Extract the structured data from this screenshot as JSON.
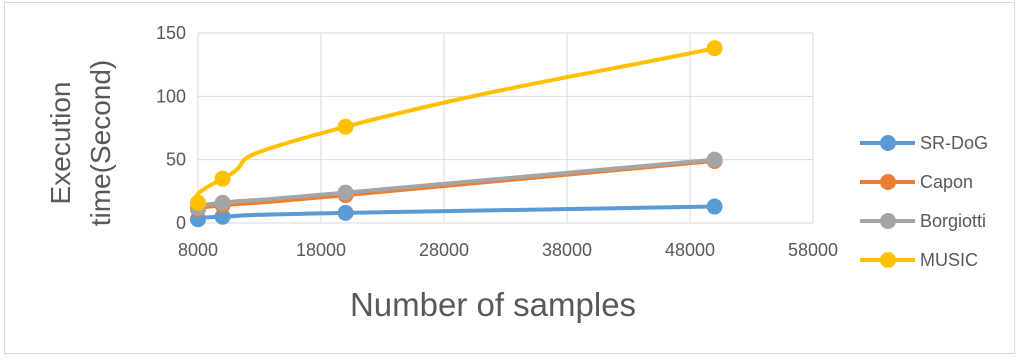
{
  "chart_data": {
    "type": "line",
    "xlabel": "Number of samples",
    "ylabel_lines": [
      "Execution",
      "time(Second)"
    ],
    "xlim": [
      8000,
      58000
    ],
    "ylim": [
      0,
      150
    ],
    "xticks": [
      8000,
      18000,
      28000,
      38000,
      48000,
      58000
    ],
    "yticks": [
      0,
      50,
      100,
      150
    ],
    "grid": true,
    "legend_position": "right",
    "x": [
      8000,
      10000,
      20000,
      50000
    ],
    "series": [
      {
        "name": "SR-DoG",
        "color": "#5b9bd5",
        "values": [
          3,
          5,
          8,
          13
        ]
      },
      {
        "name": "Capon",
        "color": "#ed7d31",
        "values": [
          11,
          14,
          22,
          49
        ]
      },
      {
        "name": "Borgiotti",
        "color": "#a5a5a5",
        "values": [
          12,
          16,
          24,
          50
        ]
      },
      {
        "name": "MUSIC",
        "color": "#ffc000",
        "values": [
          16,
          35,
          76,
          138
        ]
      }
    ]
  }
}
